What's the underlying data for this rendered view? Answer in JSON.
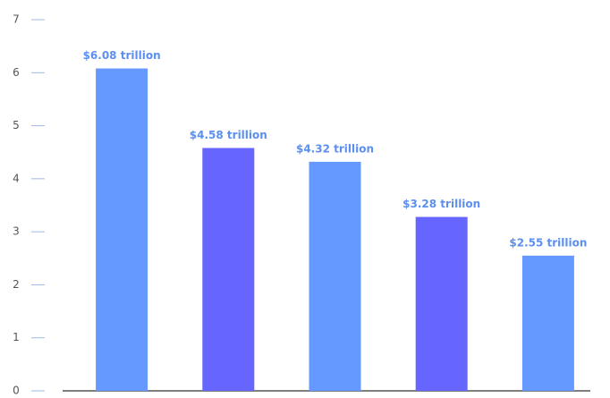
{
  "chart_data": {
    "type": "bar",
    "categories": [
      null,
      null,
      null,
      null,
      null
    ],
    "values": [
      6.08,
      4.58,
      4.32,
      3.28,
      2.55
    ],
    "value_labels": [
      "$6.08 trillion",
      "$4.58 trillion",
      "$4.32 trillion",
      "$3.28 trillion",
      "$2.55 trillion"
    ],
    "colors": [
      "#6699ff",
      "#6666ff",
      "#6699ff",
      "#6666ff",
      "#6699ff"
    ],
    "ylim": [
      0,
      7
    ],
    "yticks": [
      0,
      1,
      2,
      3,
      4,
      5,
      6,
      7
    ]
  }
}
